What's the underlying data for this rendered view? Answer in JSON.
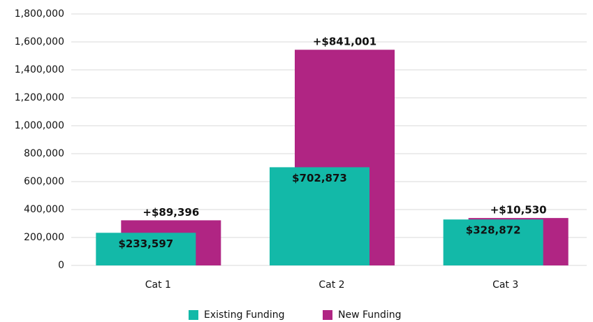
{
  "chart_data": {
    "type": "bar",
    "categories": [
      "Cat 1",
      "Cat 2",
      "Cat 3"
    ],
    "series": [
      {
        "name": "Existing Funding",
        "color": "#13b9a8",
        "values": [
          233597,
          702873,
          328872
        ],
        "value_labels": [
          "$233,597",
          "$702,873",
          "$328,872"
        ]
      },
      {
        "name": "New Funding",
        "color": "#b02583",
        "values": [
          89396,
          841001,
          10530
        ],
        "value_labels": [
          "+$89,396",
          "+$841,001",
          "+$10,530"
        ]
      }
    ],
    "ylim": [
      0,
      1800000
    ],
    "yticks": [
      0,
      {
        "value": 200000,
        "label": "200,000"
      },
      {
        "value": 400000,
        "label": "400,000"
      },
      {
        "value": 600000,
        "label": "600,000"
      },
      {
        "value": 800000,
        "label": "800,000"
      },
      {
        "value": 1000000,
        "label": "1,000,000"
      },
      {
        "value": 1200000,
        "label": "1,200,000"
      },
      {
        "value": 1400000,
        "label": "1,400,000"
      },
      {
        "value": 1600000,
        "label": "1,600,000"
      },
      {
        "value": 1800000,
        "label": "1,800,000"
      }
    ],
    "grid": true,
    "legend": "bottom"
  }
}
